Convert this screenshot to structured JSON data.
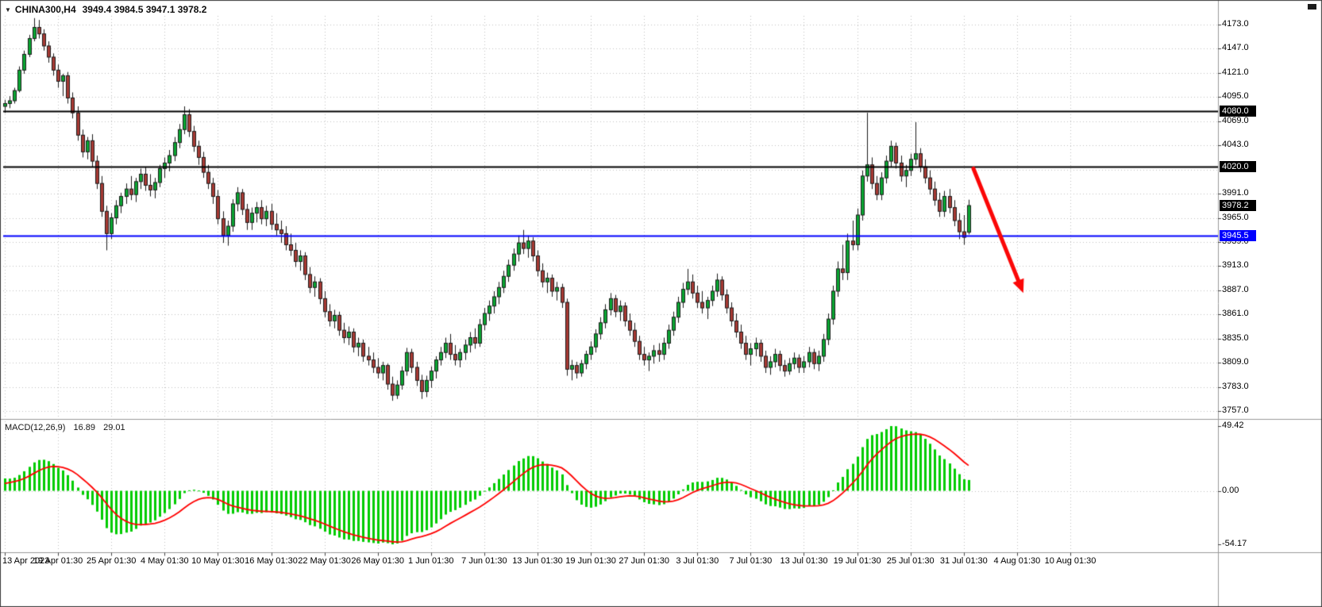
{
  "header": {
    "symbol_label": "CHINA300,H4",
    "ohlc": "3949.4 3984.5 3947.1 3978.2",
    "dropdown_glyph": "▼"
  },
  "colors": {
    "background": "#ffffff",
    "grid": "#c2c2c2",
    "bull": "#0aa632",
    "bear": "#a73a34",
    "candle_border": "#1c1c1c",
    "separator": "#9a9a9a",
    "window_border": "#3c3c3c",
    "macd_hist": "#00cc00",
    "macd_signal": "#ff0000",
    "axis_text": "#000000",
    "arrow": "#fb0707"
  },
  "chart_data": {
    "type": "candlestick+macd",
    "symbol": "CHINA300",
    "timeframe": "H4",
    "current_bar": {
      "open": 3949.4,
      "high": 3984.5,
      "low": 3947.1,
      "close": 3978.2
    },
    "price_axis": {
      "items": [
        {
          "v": 4173,
          "label": "4173.0"
        },
        {
          "v": 4147,
          "label": "4147.0"
        },
        {
          "v": 4121,
          "label": "4121.0"
        },
        {
          "v": 4095,
          "label": "4095.0"
        },
        {
          "v": 4069,
          "label": "4069.0"
        },
        {
          "v": 4043,
          "label": "4043.0"
        },
        {
          "v": 4017,
          "label": ""
        },
        {
          "v": 3991,
          "label": "3991.0"
        },
        {
          "v": 3965,
          "label": "3965.0"
        },
        {
          "v": 3939,
          "label": "3939.0"
        },
        {
          "v": 3913,
          "label": "3913.0"
        },
        {
          "v": 3887,
          "label": "3887.0"
        },
        {
          "v": 3861,
          "label": "3861.0"
        },
        {
          "v": 3835,
          "label": "3835.0"
        },
        {
          "v": 3809,
          "label": "3809.0"
        },
        {
          "v": 3783,
          "label": "3783.0"
        },
        {
          "v": 3757,
          "label": "3757.0"
        }
      ]
    },
    "time_axis": [
      {
        "idx": 0,
        "text": "13 Apr 2023"
      },
      {
        "idx": 11,
        "text": "19 Apr 01:30"
      },
      {
        "idx": 22,
        "text": "25 Apr 01:30"
      },
      {
        "idx": 33,
        "text": "4 May 01:30"
      },
      {
        "idx": 44,
        "text": "10 May 01:30"
      },
      {
        "idx": 55,
        "text": "16 May 01:30"
      },
      {
        "idx": 66,
        "text": "22 May 01:30"
      },
      {
        "idx": 77,
        "text": "26 May 01:30"
      },
      {
        "idx": 88,
        "text": "1 Jun 01:30"
      },
      {
        "idx": 99,
        "text": "7 Jun 01:30"
      },
      {
        "idx": 110,
        "text": "13 Jun 01:30"
      },
      {
        "idx": 121,
        "text": "19 Jun 01:30"
      },
      {
        "idx": 132,
        "text": "27 Jun 01:30"
      },
      {
        "idx": 143,
        "text": "3 Jul 01:30"
      },
      {
        "idx": 154,
        "text": "7 Jul 01:30"
      },
      {
        "idx": 165,
        "text": "13 Jul 01:30"
      },
      {
        "idx": 176,
        "text": "19 Jul 01:30"
      },
      {
        "idx": 187,
        "text": "25 Jul 01:30"
      },
      {
        "idx": 198,
        "text": "31 Jul 01:30"
      },
      {
        "idx": 209,
        "text": "4 Aug 01:30"
      },
      {
        "idx": 220,
        "text": "10 Aug 01:30"
      }
    ],
    "visible_slots": 221,
    "hlines": [
      {
        "price": 4080.0,
        "label": "4080.0",
        "color": "#000000",
        "width": 2
      },
      {
        "price": 4020.0,
        "label": "4020.0",
        "color": "#000000",
        "width": 2
      },
      {
        "price": 3945.5,
        "label": "3945.5",
        "color": "#0000fe",
        "width": 2
      }
    ],
    "price_tag": {
      "label": "3978.2",
      "price": 3978.2,
      "bg": "#000000"
    },
    "macd": {
      "label": "MACD(12,26,9)",
      "main_value": "16.89",
      "signal_value": "29.01",
      "fast": 12,
      "slow": 26,
      "signal": 9,
      "axis_labels": [
        "49.42",
        "0.00",
        "-54.17"
      ],
      "axis_values": [
        49.42,
        0,
        -54.17
      ]
    },
    "annotation_arrow": {
      "from": {
        "slot": 200,
        "price": 4018
      },
      "to": {
        "slot": 210.3,
        "price": 3884
      }
    },
    "candles": [
      [
        4085,
        4092,
        4078,
        4088
      ],
      [
        4088,
        4096,
        4083,
        4091
      ],
      [
        4091,
        4105,
        4088,
        4102
      ],
      [
        4102,
        4128,
        4100,
        4124
      ],
      [
        4124,
        4145,
        4120,
        4141
      ],
      [
        4141,
        4162,
        4138,
        4158
      ],
      [
        4158,
        4180,
        4155,
        4170
      ],
      [
        4170,
        4178,
        4158,
        4163
      ],
      [
        4163,
        4168,
        4145,
        4150
      ],
      [
        4150,
        4155,
        4132,
        4138
      ],
      [
        4138,
        4142,
        4118,
        4124
      ],
      [
        4124,
        4130,
        4105,
        4112
      ],
      [
        4112,
        4120,
        4096,
        4118
      ],
      [
        4118,
        4122,
        4088,
        4094
      ],
      [
        4094,
        4100,
        4072,
        4078
      ],
      [
        4078,
        4085,
        4048,
        4054
      ],
      [
        4054,
        4060,
        4030,
        4036
      ],
      [
        4036,
        4052,
        4028,
        4048
      ],
      [
        4048,
        4055,
        4020,
        4026
      ],
      [
        4026,
        4032,
        3996,
        4002
      ],
      [
        4002,
        4010,
        3966,
        3972
      ],
      [
        3972,
        3978,
        3930,
        3948
      ],
      [
        3948,
        3970,
        3942,
        3965
      ],
      [
        3965,
        3984,
        3958,
        3978
      ],
      [
        3978,
        3992,
        3970,
        3988
      ],
      [
        3988,
        4002,
        3980,
        3996
      ],
      [
        3996,
        4010,
        3984,
        3990
      ],
      [
        3990,
        4008,
        3982,
        4004
      ],
      [
        4004,
        4018,
        3996,
        4012
      ],
      [
        4012,
        4020,
        3994,
        4000
      ],
      [
        4000,
        4012,
        3988,
        3995
      ],
      [
        3995,
        4008,
        3986,
        4003
      ],
      [
        4003,
        4022,
        3998,
        4018
      ],
      [
        4018,
        4030,
        4008,
        4024
      ],
      [
        4024,
        4038,
        4015,
        4032
      ],
      [
        4032,
        4052,
        4026,
        4046
      ],
      [
        4046,
        4066,
        4040,
        4060
      ],
      [
        4060,
        4085,
        4055,
        4076
      ],
      [
        4076,
        4082,
        4052,
        4058
      ],
      [
        4058,
        4064,
        4036,
        4042
      ],
      [
        4042,
        4048,
        4022,
        4030
      ],
      [
        4030,
        4036,
        4008,
        4014
      ],
      [
        4014,
        4022,
        3996,
        4002
      ],
      [
        4002,
        4008,
        3980,
        3988
      ],
      [
        3988,
        3995,
        3958,
        3964
      ],
      [
        3964,
        3972,
        3938,
        3946
      ],
      [
        3946,
        3962,
        3935,
        3956
      ],
      [
        3956,
        3985,
        3950,
        3980
      ],
      [
        3980,
        3998,
        3972,
        3992
      ],
      [
        3992,
        3996,
        3968,
        3974
      ],
      [
        3974,
        3980,
        3952,
        3960
      ],
      [
        3960,
        3976,
        3952,
        3970
      ],
      [
        3970,
        3982,
        3960,
        3976
      ],
      [
        3976,
        3984,
        3958,
        3964
      ],
      [
        3964,
        3978,
        3956,
        3972
      ],
      [
        3972,
        3980,
        3952,
        3958
      ],
      [
        3958,
        3970,
        3946,
        3952
      ],
      [
        3952,
        3962,
        3938,
        3948
      ],
      [
        3948,
        3956,
        3930,
        3936
      ],
      [
        3936,
        3948,
        3924,
        3930
      ],
      [
        3930,
        3938,
        3912,
        3918
      ],
      [
        3918,
        3930,
        3908,
        3924
      ],
      [
        3924,
        3928,
        3898,
        3904
      ],
      [
        3904,
        3912,
        3884,
        3890
      ],
      [
        3890,
        3902,
        3880,
        3896
      ],
      [
        3896,
        3900,
        3872,
        3878
      ],
      [
        3878,
        3886,
        3858,
        3864
      ],
      [
        3864,
        3872,
        3848,
        3854
      ],
      [
        3854,
        3866,
        3846,
        3860
      ],
      [
        3860,
        3864,
        3838,
        3844
      ],
      [
        3844,
        3852,
        3830,
        3836
      ],
      [
        3836,
        3848,
        3828,
        3842
      ],
      [
        3842,
        3846,
        3820,
        3826
      ],
      [
        3826,
        3836,
        3816,
        3830
      ],
      [
        3830,
        3834,
        3810,
        3816
      ],
      [
        3816,
        3826,
        3806,
        3812
      ],
      [
        3812,
        3820,
        3798,
        3804
      ],
      [
        3804,
        3814,
        3792,
        3798
      ],
      [
        3798,
        3810,
        3790,
        3806
      ],
      [
        3806,
        3808,
        3780,
        3786
      ],
      [
        3786,
        3794,
        3768,
        3774
      ],
      [
        3774,
        3790,
        3770,
        3785
      ],
      [
        3785,
        3805,
        3780,
        3800
      ],
      [
        3800,
        3825,
        3795,
        3820
      ],
      [
        3820,
        3824,
        3798,
        3804
      ],
      [
        3804,
        3810,
        3784,
        3790
      ],
      [
        3790,
        3796,
        3770,
        3778
      ],
      [
        3778,
        3795,
        3772,
        3790
      ],
      [
        3790,
        3805,
        3782,
        3800
      ],
      [
        3800,
        3816,
        3792,
        3812
      ],
      [
        3812,
        3826,
        3806,
        3820
      ],
      [
        3820,
        3836,
        3814,
        3830
      ],
      [
        3830,
        3840,
        3812,
        3818
      ],
      [
        3818,
        3828,
        3806,
        3812
      ],
      [
        3812,
        3824,
        3804,
        3820
      ],
      [
        3820,
        3834,
        3812,
        3828
      ],
      [
        3828,
        3842,
        3820,
        3836
      ],
      [
        3836,
        3846,
        3824,
        3830
      ],
      [
        3830,
        3856,
        3826,
        3850
      ],
      [
        3850,
        3868,
        3844,
        3862
      ],
      [
        3862,
        3876,
        3854,
        3870
      ],
      [
        3870,
        3886,
        3862,
        3880
      ],
      [
        3880,
        3896,
        3872,
        3890
      ],
      [
        3890,
        3908,
        3884,
        3902
      ],
      [
        3902,
        3920,
        3896,
        3914
      ],
      [
        3914,
        3932,
        3908,
        3926
      ],
      [
        3926,
        3946,
        3918,
        3938
      ],
      [
        3938,
        3952,
        3926,
        3932
      ],
      [
        3932,
        3946,
        3922,
        3940
      ],
      [
        3940,
        3944,
        3918,
        3924
      ],
      [
        3924,
        3930,
        3902,
        3908
      ],
      [
        3908,
        3916,
        3890,
        3896
      ],
      [
        3896,
        3906,
        3884,
        3900
      ],
      [
        3900,
        3904,
        3880,
        3886
      ],
      [
        3886,
        3896,
        3876,
        3890
      ],
      [
        3890,
        3894,
        3868,
        3874
      ],
      [
        3874,
        3878,
        3795,
        3802
      ],
      [
        3802,
        3812,
        3790,
        3806
      ],
      [
        3806,
        3810,
        3792,
        3798
      ],
      [
        3798,
        3812,
        3794,
        3808
      ],
      [
        3808,
        3822,
        3802,
        3818
      ],
      [
        3818,
        3832,
        3812,
        3826
      ],
      [
        3826,
        3845,
        3820,
        3840
      ],
      [
        3840,
        3858,
        3834,
        3852
      ],
      [
        3852,
        3872,
        3846,
        3866
      ],
      [
        3866,
        3884,
        3860,
        3878
      ],
      [
        3878,
        3882,
        3858,
        3864
      ],
      [
        3864,
        3876,
        3854,
        3870
      ],
      [
        3870,
        3874,
        3848,
        3854
      ],
      [
        3854,
        3862,
        3838,
        3844
      ],
      [
        3844,
        3852,
        3826,
        3832
      ],
      [
        3832,
        3838,
        3812,
        3818
      ],
      [
        3818,
        3826,
        3806,
        3812
      ],
      [
        3812,
        3820,
        3800,
        3816
      ],
      [
        3816,
        3828,
        3808,
        3822
      ],
      [
        3822,
        3830,
        3810,
        3818
      ],
      [
        3818,
        3836,
        3812,
        3830
      ],
      [
        3830,
        3850,
        3824,
        3844
      ],
      [
        3844,
        3864,
        3838,
        3858
      ],
      [
        3858,
        3880,
        3852,
        3874
      ],
      [
        3874,
        3895,
        3868,
        3888
      ],
      [
        3888,
        3910,
        3882,
        3896
      ],
      [
        3896,
        3904,
        3878,
        3884
      ],
      [
        3884,
        3892,
        3868,
        3874
      ],
      [
        3874,
        3886,
        3862,
        3868
      ],
      [
        3868,
        3880,
        3856,
        3876
      ],
      [
        3876,
        3892,
        3870,
        3886
      ],
      [
        3886,
        3905,
        3880,
        3898
      ],
      [
        3898,
        3902,
        3876,
        3882
      ],
      [
        3882,
        3888,
        3862,
        3868
      ],
      [
        3868,
        3874,
        3848,
        3854
      ],
      [
        3854,
        3862,
        3836,
        3842
      ],
      [
        3842,
        3850,
        3824,
        3830
      ],
      [
        3830,
        3838,
        3812,
        3818
      ],
      [
        3818,
        3830,
        3806,
        3824
      ],
      [
        3824,
        3836,
        3816,
        3830
      ],
      [
        3830,
        3834,
        3810,
        3816
      ],
      [
        3816,
        3822,
        3798,
        3804
      ],
      [
        3804,
        3816,
        3796,
        3810
      ],
      [
        3810,
        3824,
        3804,
        3818
      ],
      [
        3818,
        3822,
        3800,
        3806
      ],
      [
        3806,
        3812,
        3794,
        3800
      ],
      [
        3800,
        3814,
        3796,
        3808
      ],
      [
        3808,
        3820,
        3802,
        3814
      ],
      [
        3814,
        3818,
        3798,
        3804
      ],
      [
        3804,
        3816,
        3798,
        3810
      ],
      [
        3810,
        3826,
        3804,
        3820
      ],
      [
        3820,
        3824,
        3802,
        3808
      ],
      [
        3808,
        3822,
        3800,
        3816
      ],
      [
        3816,
        3840,
        3810,
        3834
      ],
      [
        3834,
        3862,
        3828,
        3856
      ],
      [
        3856,
        3892,
        3850,
        3886
      ],
      [
        3886,
        3918,
        3880,
        3910
      ],
      [
        3910,
        3936,
        3898,
        3906
      ],
      [
        3906,
        3948,
        3898,
        3940
      ],
      [
        3940,
        3962,
        3930,
        3936
      ],
      [
        3936,
        3975,
        3930,
        3968
      ],
      [
        3968,
        4016,
        3962,
        4010
      ],
      [
        4010,
        4078,
        4004,
        4022
      ],
      [
        4022,
        4030,
        3996,
        4002
      ],
      [
        4002,
        4010,
        3984,
        3990
      ],
      [
        3990,
        4014,
        3984,
        4008
      ],
      [
        4008,
        4032,
        4002,
        4026
      ],
      [
        4026,
        4048,
        4020,
        4042
      ],
      [
        4042,
        4046,
        4018,
        4024
      ],
      [
        4024,
        4032,
        4004,
        4010
      ],
      [
        4010,
        4022,
        3998,
        4016
      ],
      [
        4016,
        4034,
        4010,
        4028
      ],
      [
        4028,
        4068,
        4022,
        4034
      ],
      [
        4034,
        4040,
        4014,
        4020
      ],
      [
        4020,
        4028,
        4002,
        4008
      ],
      [
        4008,
        4016,
        3990,
        3996
      ],
      [
        3996,
        4004,
        3978,
        3984
      ],
      [
        3984,
        3992,
        3966,
        3972
      ],
      [
        3972,
        3994,
        3966,
        3988
      ],
      [
        3988,
        3996,
        3970,
        3976
      ],
      [
        3976,
        3984,
        3956,
        3962
      ],
      [
        3962,
        3970,
        3942,
        3950
      ],
      [
        3950,
        3968,
        3936,
        3944
      ],
      [
        3949.4,
        3984.5,
        3947.1,
        3978.2
      ]
    ]
  }
}
